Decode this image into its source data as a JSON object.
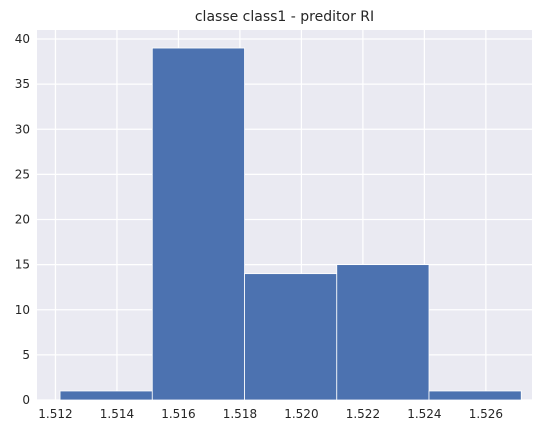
{
  "chart_data": {
    "type": "bar",
    "title": "classe class1 - preditor RI",
    "xlabel": "",
    "ylabel": "",
    "bins": [
      {
        "x0": 1.51215,
        "x1": 1.51515,
        "count": 1
      },
      {
        "x0": 1.51515,
        "x1": 1.51815,
        "count": 39
      },
      {
        "x0": 1.51815,
        "x1": 1.52115,
        "count": 14
      },
      {
        "x0": 1.52115,
        "x1": 1.52415,
        "count": 15
      },
      {
        "x0": 1.52415,
        "x1": 1.52715,
        "count": 1
      }
    ],
    "xlim": [
      1.5114,
      1.5275
    ],
    "ylim": [
      0,
      41
    ],
    "xticks": [
      1.512,
      1.514,
      1.516,
      1.518,
      1.52,
      1.522,
      1.524,
      1.526
    ],
    "xtick_labels": [
      "1.512",
      "1.514",
      "1.516",
      "1.518",
      "1.520",
      "1.522",
      "1.524",
      "1.526"
    ],
    "yticks": [
      0,
      5,
      10,
      15,
      20,
      25,
      30,
      35,
      40
    ],
    "ytick_labels": [
      "0",
      "5",
      "10",
      "15",
      "20",
      "25",
      "30",
      "35",
      "40"
    ],
    "grid": true,
    "colors": {
      "bar": "#4c72b0",
      "plot_bg": "#eaeaf2",
      "grid": "#ffffff",
      "text": "#262626"
    }
  }
}
